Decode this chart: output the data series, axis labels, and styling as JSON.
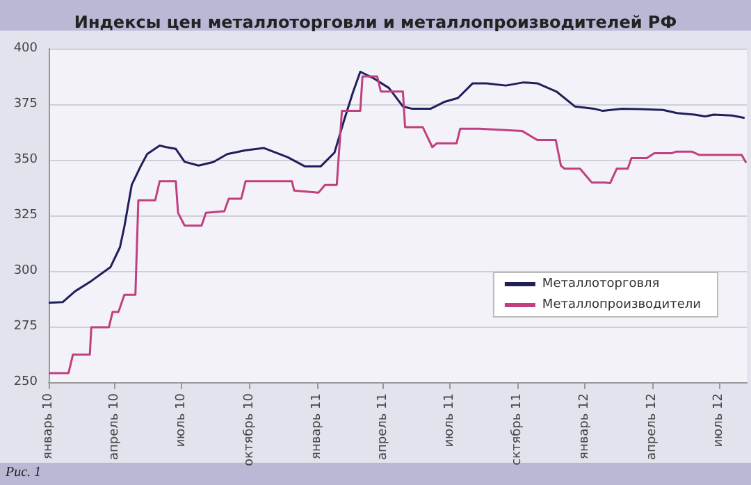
{
  "chart_data": {
    "type": "line",
    "title": "Индексы цен металлоторговли и металлопроизводителей РФ",
    "annotations": [
      "Рис. 1"
    ],
    "xlim": [
      "2010-01-01",
      "2012-08-08"
    ],
    "xticks": [
      {
        "value": "2010-01-01",
        "label": "январь 10"
      },
      {
        "value": "2010-04-01",
        "label": "апрель 10"
      },
      {
        "value": "2010-07-01",
        "label": "июль 10"
      },
      {
        "value": "2010-10-01",
        "label": "октябрь 10"
      },
      {
        "value": "2011-01-01",
        "label": "январь 11"
      },
      {
        "value": "2011-04-01",
        "label": "апрель 11"
      },
      {
        "value": "2011-07-01",
        "label": "июль 11"
      },
      {
        "value": "2011-10-01",
        "label": "сктябрь 11"
      },
      {
        "value": "2012-01-01",
        "label": "январь 12"
      },
      {
        "value": "2012-04-01",
        "label": "апрель 12"
      },
      {
        "value": "2012-07-01",
        "label": "июль 12"
      }
    ],
    "ylim": [
      250,
      400
    ],
    "yticks": [
      250,
      275,
      300,
      325,
      350,
      375,
      400
    ],
    "grid": "y",
    "legend": "bottom right",
    "marker": "none",
    "line_style": "solid",
    "series": [
      {
        "name": "Металлоторговля",
        "color": "#1f1f5c",
        "x": [
          "2010-01-01",
          "2010-01-20",
          "2010-02-06",
          "2010-02-28",
          "2010-03-26",
          "2010-04-08",
          "2010-04-14",
          "2010-04-24",
          "2010-05-06",
          "2010-05-15",
          "2010-06-01",
          "2010-06-10",
          "2010-06-23",
          "2010-07-05",
          "2010-07-24",
          "2010-08-13",
          "2010-09-01",
          "2010-09-26",
          "2010-10-21",
          "2010-11-22",
          "2010-12-16",
          "2011-01-06",
          "2011-01-25",
          "2011-02-07",
          "2011-02-19",
          "2011-03-01",
          "2011-03-20",
          "2011-04-09",
          "2011-04-28",
          "2011-05-10",
          "2011-06-05",
          "2011-06-23",
          "2011-07-12",
          "2011-08-01",
          "2011-08-20",
          "2011-09-15",
          "2011-10-09",
          "2011-10-28",
          "2011-11-23",
          "2011-12-18",
          "2012-01-13",
          "2012-01-25",
          "2012-02-20",
          "2012-03-15",
          "2012-04-16",
          "2012-05-05",
          "2012-05-29",
          "2012-06-12",
          "2012-06-24",
          "2012-07-19",
          "2012-08-05"
        ],
        "values": [
          285.7,
          286,
          290.9,
          295.5,
          301.7,
          310.7,
          320,
          338.7,
          347,
          352.6,
          356.4,
          355.7,
          354.9,
          349.1,
          347.4,
          349,
          352.6,
          354.3,
          355.3,
          351.2,
          347,
          347,
          353.3,
          367.8,
          380.3,
          389.6,
          386.5,
          382.3,
          374,
          373,
          373,
          376,
          377.8,
          384.4,
          384.4,
          383.4,
          384.8,
          384.4,
          380.7,
          374,
          373,
          372,
          373,
          372.8,
          372.4,
          371,
          370.3,
          369.5,
          370.3,
          369.9,
          368.8
        ]
      },
      {
        "name": "Металлопроизводители",
        "color": "#c0407f",
        "x": [
          "2010-01-01",
          "2010-01-28",
          "2010-02-03",
          "2010-02-26",
          "2010-02-28",
          "2010-03-24",
          "2010-03-29",
          "2010-04-06",
          "2010-04-14",
          "2010-04-29",
          "2010-05-03",
          "2010-05-26",
          "2010-06-01",
          "2010-06-23",
          "2010-06-26",
          "2010-07-05",
          "2010-07-28",
          "2010-08-03",
          "2010-08-28",
          "2010-09-03",
          "2010-09-20",
          "2010-09-26",
          "2010-11-28",
          "2010-12-01",
          "2011-01-03",
          "2011-01-12",
          "2011-01-28",
          "2011-02-04",
          "2011-03-01",
          "2011-03-04",
          "2011-03-24",
          "2011-03-29",
          "2011-04-28",
          "2011-05-01",
          "2011-05-25",
          "2011-06-07",
          "2011-06-13",
          "2011-07-10",
          "2011-07-15",
          "2011-08-10",
          "2011-10-07",
          "2011-10-28",
          "2011-11-22",
          "2011-11-29",
          "2011-12-04",
          "2011-12-25",
          "2012-01-10",
          "2012-01-28",
          "2012-02-04",
          "2012-02-13",
          "2012-02-28",
          "2012-03-04",
          "2012-03-25",
          "2012-04-04",
          "2012-04-28",
          "2012-05-04",
          "2012-05-25",
          "2012-06-04",
          "2012-08-01",
          "2012-08-07"
        ],
        "values": [
          254.1,
          254.1,
          262.4,
          262.4,
          274.7,
          274.7,
          281.6,
          281.6,
          289.3,
          289.3,
          331.8,
          331.8,
          340.4,
          340.4,
          326.2,
          320.4,
          320.4,
          326.2,
          326.9,
          332.5,
          332.5,
          340.4,
          340.4,
          336.2,
          335.2,
          338.7,
          338.7,
          372,
          372,
          387.5,
          387.5,
          380.7,
          380.7,
          364.7,
          364.7,
          355.7,
          357.4,
          357.4,
          364,
          364,
          363,
          358.9,
          358.9,
          347.4,
          346,
          346,
          339.8,
          339.8,
          339.5,
          346,
          346,
          350.8,
          350.8,
          353,
          353,
          353.7,
          353.7,
          352.2,
          352.2,
          348.7
        ]
      }
    ]
  }
}
